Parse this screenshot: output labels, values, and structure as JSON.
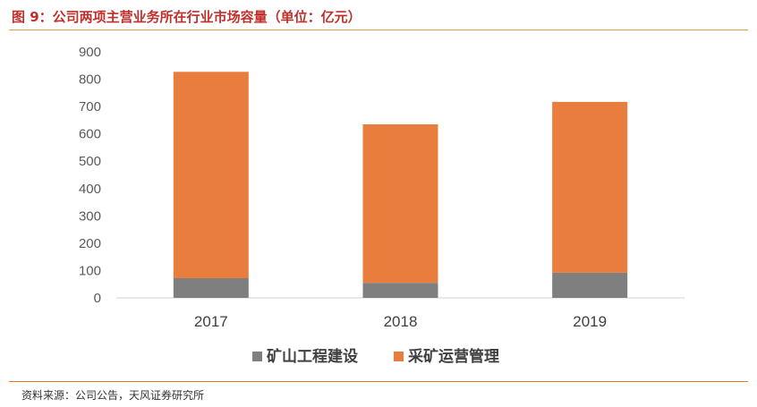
{
  "figure": {
    "title": "图 9：公司两项主营业务所在行业市场容量（单位：亿元）",
    "source": "资料来源：公司公告，天风证券研究所"
  },
  "chart_data": {
    "type": "bar",
    "stacked": true,
    "categories": [
      "2017",
      "2018",
      "2019"
    ],
    "series": [
      {
        "name": "矿山工程建设",
        "values": [
          72,
          55,
          92
        ],
        "color": "#7f7f7f"
      },
      {
        "name": "采矿运营管理",
        "values": [
          755,
          580,
          625
        ],
        "color": "#e87d3e"
      }
    ],
    "ylim": [
      0,
      900
    ],
    "yticks": [
      0,
      100,
      200,
      300,
      400,
      500,
      600,
      700,
      800,
      900
    ],
    "grid": false,
    "legend": "bottom-center"
  }
}
